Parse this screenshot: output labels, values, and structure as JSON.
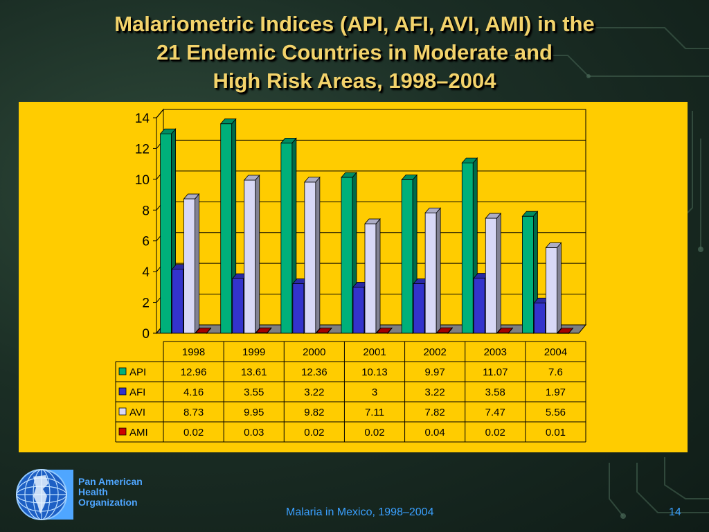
{
  "slide": {
    "title_lines": [
      "Malariometric Indices (API, AFI, AVI, AMI) in the",
      "21 Endemic Countries in Moderate and",
      "High Risk Areas, 1998–2004"
    ],
    "footer": "Malaria in Mexico, 1998–2004",
    "page_number": "14",
    "org_lines": [
      "Pan American",
      "Health",
      "Organization"
    ],
    "title_color": "#f3d36b",
    "panel_color": "#ffcc00",
    "footer_color": "#3aa0ff"
  },
  "chart_data": {
    "type": "bar",
    "style": "3d-clustered-bar-with-data-table",
    "categories": [
      "1998",
      "1999",
      "2000",
      "2001",
      "2002",
      "2003",
      "2004"
    ],
    "series": [
      {
        "name": "API",
        "color": "#00b07a",
        "values": [
          12.96,
          13.61,
          12.36,
          10.13,
          9.97,
          11.07,
          7.6
        ]
      },
      {
        "name": "AFI",
        "color": "#3333cc",
        "values": [
          4.16,
          3.55,
          3.22,
          3,
          3.22,
          3.58,
          1.97
        ]
      },
      {
        "name": "AVI",
        "color": "#d8d8f6",
        "values": [
          8.73,
          9.95,
          9.82,
          7.11,
          7.82,
          7.47,
          5.56
        ]
      },
      {
        "name": "AMI",
        "color": "#cc0000",
        "values": [
          0.02,
          0.03,
          0.02,
          0.02,
          0.04,
          0.02,
          0.01
        ]
      }
    ],
    "table_values": [
      [
        "12.96",
        "13.61",
        "12.36",
        "10.13",
        "9.97",
        "11.07",
        "7.6"
      ],
      [
        "4.16",
        "3.55",
        "3.22",
        "3",
        "3.22",
        "3.58",
        "1.97"
      ],
      [
        "8.73",
        "9.95",
        "9.82",
        "7.11",
        "7.82",
        "7.47",
        "5.56"
      ],
      [
        "0.02",
        "0.03",
        "0.02",
        "0.02",
        "0.04",
        "0.02",
        "0.01"
      ]
    ],
    "ylim": [
      0,
      14
    ],
    "yticks": [
      "0",
      "2",
      "4",
      "6",
      "8",
      "10",
      "12",
      "14"
    ],
    "grid": true,
    "legend": "data-table"
  }
}
